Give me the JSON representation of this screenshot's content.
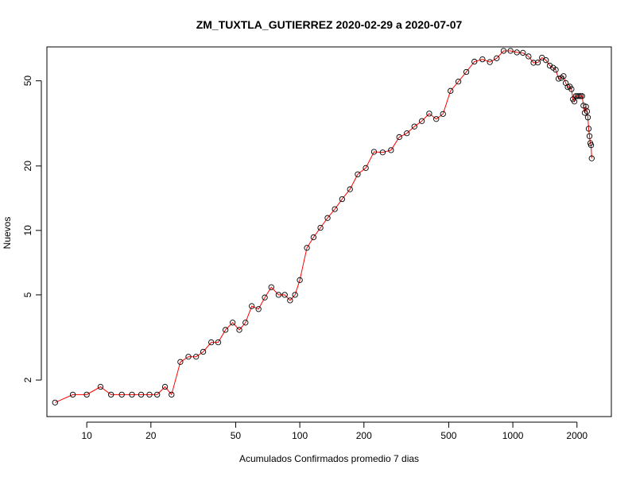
{
  "chart_data": {
    "type": "line",
    "title": "ZM_TUXTLA_GUTIERREZ 2020-02-29 a 2020-07-07",
    "xlabel": "Acumulados Confirmados promedio  7  dias",
    "ylabel": "Nuevos",
    "x_scale": "log",
    "y_scale": "log",
    "xlim": [
      6.5,
      2900
    ],
    "ylim": [
      1.35,
      72
    ],
    "x_ticks": [
      10,
      20,
      50,
      100,
      200,
      500,
      1000,
      2000
    ],
    "x_tick_labels": [
      "10",
      "20",
      "50",
      "100",
      "200",
      "500",
      "1000",
      "2000"
    ],
    "y_ticks": [
      2,
      5,
      10,
      20,
      50
    ],
    "y_tick_labels": [
      "2",
      "5",
      "10",
      "20",
      "50"
    ],
    "grid": false,
    "line_color": "#ff0000",
    "marker": "open-circle",
    "marker_color": "#000000",
    "series": [
      {
        "points": [
          [
            7.1,
            1.57
          ],
          [
            8.6,
            1.71
          ],
          [
            10.0,
            1.71
          ],
          [
            11.6,
            1.86
          ],
          [
            13.0,
            1.71
          ],
          [
            14.6,
            1.71
          ],
          [
            16.3,
            1.71
          ],
          [
            18.0,
            1.71
          ],
          [
            19.7,
            1.71
          ],
          [
            21.4,
            1.71
          ],
          [
            23.3,
            1.86
          ],
          [
            25.0,
            1.71
          ],
          [
            27.5,
            2.43
          ],
          [
            30.0,
            2.57
          ],
          [
            32.6,
            2.57
          ],
          [
            35.2,
            2.71
          ],
          [
            38.4,
            3.0
          ],
          [
            41.4,
            3.0
          ],
          [
            44.8,
            3.43
          ],
          [
            48.4,
            3.71
          ],
          [
            52.0,
            3.43
          ],
          [
            55.6,
            3.71
          ],
          [
            59.5,
            4.43
          ],
          [
            64.0,
            4.29
          ],
          [
            68.5,
            4.86
          ],
          [
            73.5,
            5.43
          ],
          [
            79.5,
            5.0
          ],
          [
            85.0,
            5.0
          ],
          [
            90.0,
            4.71
          ],
          [
            95.0,
            5.0
          ],
          [
            100.0,
            5.86
          ],
          [
            108.0,
            8.29
          ],
          [
            116.0,
            9.29
          ],
          [
            125.0,
            10.29
          ],
          [
            135.0,
            11.43
          ],
          [
            146.0,
            12.57
          ],
          [
            158.0,
            14.0
          ],
          [
            172.0,
            15.57
          ],
          [
            187.0,
            18.29
          ],
          [
            204.0,
            19.57
          ],
          [
            223.0,
            23.29
          ],
          [
            245.0,
            23.14
          ],
          [
            268.0,
            23.71
          ],
          [
            293.0,
            27.29
          ],
          [
            318.0,
            28.43
          ],
          [
            345.0,
            30.57
          ],
          [
            374.0,
            32.43
          ],
          [
            405.0,
            35.14
          ],
          [
            437.0,
            33.14
          ],
          [
            470.0,
            35.0
          ],
          [
            510.0,
            44.86
          ],
          [
            555.0,
            49.57
          ],
          [
            605.0,
            55.0
          ],
          [
            660.0,
            61.43
          ],
          [
            720.0,
            63.0
          ],
          [
            780.0,
            61.14
          ],
          [
            840.0,
            63.71
          ],
          [
            905.0,
            69.0
          ],
          [
            975.0,
            69.0
          ],
          [
            1045.0,
            67.86
          ],
          [
            1115.0,
            67.57
          ],
          [
            1185.0,
            65.0
          ],
          [
            1250.0,
            60.71
          ],
          [
            1310.0,
            60.86
          ],
          [
            1370.0,
            64.14
          ],
          [
            1430.0,
            62.43
          ],
          [
            1490.0,
            58.86
          ],
          [
            1545.0,
            57.57
          ],
          [
            1590.0,
            56.29
          ],
          [
            1640.0,
            51.14
          ],
          [
            1685.0,
            51.57
          ],
          [
            1730.0,
            52.57
          ],
          [
            1770.0,
            48.86
          ],
          [
            1810.0,
            46.71
          ],
          [
            1850.0,
            47.0
          ],
          [
            1885.0,
            45.71
          ],
          [
            1915.0,
            41.0
          ],
          [
            1945.0,
            40.0
          ],
          [
            1975.0,
            42.43
          ],
          [
            2010.0,
            42.43
          ],
          [
            2045.0,
            42.43
          ],
          [
            2080.0,
            42.43
          ],
          [
            2115.0,
            42.43
          ],
          [
            2145.0,
            38.29
          ],
          [
            2175.0,
            35.43
          ],
          [
            2205.0,
            37.86
          ],
          [
            2230.0,
            36.0
          ],
          [
            2250.0,
            33.71
          ],
          [
            2270.0,
            29.86
          ],
          [
            2290.0,
            27.57
          ],
          [
            2310.0,
            25.57
          ],
          [
            2330.0,
            25.0
          ],
          [
            2345.0,
            21.71
          ]
        ]
      }
    ]
  }
}
